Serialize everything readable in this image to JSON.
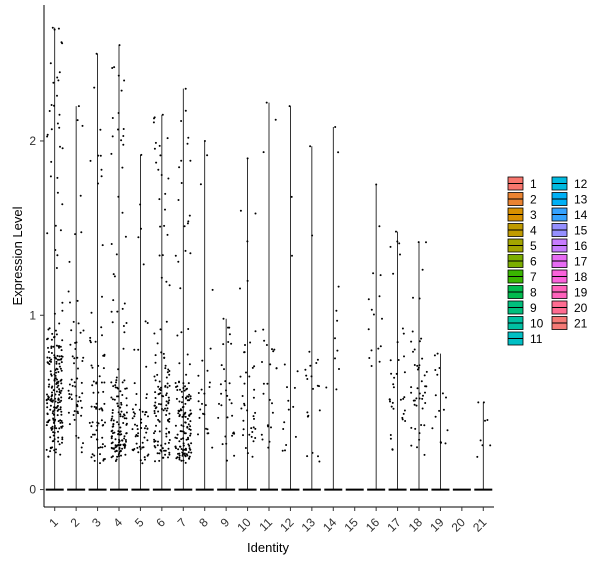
{
  "chart_data": {
    "type": "violin",
    "xlabel": "Identity",
    "ylabel": "Expression Level",
    "ylim": [
      -0.1,
      2.78
    ],
    "yticks": [
      0,
      1,
      2
    ],
    "categories": [
      "1",
      "2",
      "3",
      "4",
      "5",
      "6",
      "7",
      "8",
      "9",
      "10",
      "11",
      "12",
      "13",
      "14",
      "15",
      "16",
      "17",
      "18",
      "19",
      "20",
      "21"
    ],
    "max_values": [
      2.65,
      2.2,
      2.5,
      2.55,
      1.92,
      2.15,
      2.3,
      2.0,
      0.98,
      1.9,
      2.22,
      2.2,
      1.97,
      2.08,
      0.0,
      1.75,
      1.48,
      1.42,
      0.78,
      0.0,
      0.5
    ],
    "point_density": [
      230,
      60,
      75,
      150,
      60,
      130,
      150,
      25,
      30,
      40,
      25,
      15,
      20,
      10,
      0,
      15,
      35,
      45,
      15,
      0,
      7
    ],
    "point_center": [
      0.55,
      0.6,
      0.45,
      0.35,
      0.3,
      0.45,
      0.35,
      0.4,
      0.45,
      0.5,
      0.6,
      0.5,
      0.5,
      1.0,
      0,
      0.9,
      0.6,
      0.6,
      0.5,
      0,
      0.38
    ],
    "legend": {
      "position": "right",
      "columns": [
        [
          "1",
          "2",
          "3",
          "4",
          "5",
          "6",
          "7",
          "8",
          "9",
          "10",
          "11"
        ],
        [
          "12",
          "13",
          "14",
          "15",
          "16",
          "17",
          "18",
          "19",
          "20",
          "21"
        ]
      ]
    },
    "colors": [
      "#F8766D",
      "#EA8331",
      "#D89000",
      "#C09B00",
      "#A3A500",
      "#7CAE00",
      "#39B600",
      "#00BB4E",
      "#00BF7D",
      "#00C1A3",
      "#00BFC4",
      "#00BAE0",
      "#00B0F6",
      "#35A2FF",
      "#9590FF",
      "#C77CFF",
      "#E76BF3",
      "#FA62DB",
      "#FF62BC",
      "#FF6C91",
      "#F57A76"
    ],
    "grid": false
  }
}
